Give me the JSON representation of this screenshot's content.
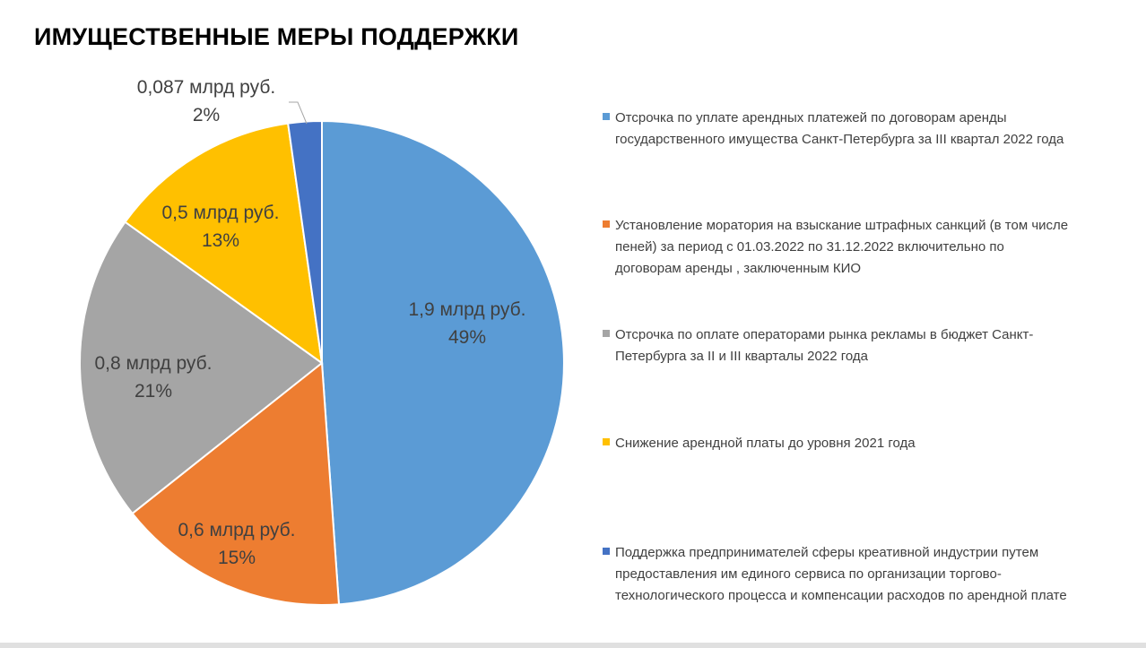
{
  "header": {
    "title": "ИМУЩЕСТВЕННЫЕ МЕРЫ ПОДДЕРЖКИ"
  },
  "chart_data": {
    "type": "pie",
    "start_angle_deg": 0,
    "direction": "clockwise",
    "legend_placement": "right",
    "slices": [
      {
        "label": "Отсрочка по уплате арендных платежей по договорам аренды\nгосударственного имущества Санкт-Петербурга за III квартал 2022 года",
        "value": 1.9,
        "value_text": "1,9 млрд руб.",
        "percent": 49,
        "percent_text": "49%",
        "color": "#5b9bd5"
      },
      {
        "label": "Установление моратория на взыскание штрафных санкций (в том числе\nпеней) за период с 01.03.2022 по 31.12.2022 включительно по\nдоговорам аренды , заключенным КИО",
        "value": 0.6,
        "value_text": "0,6 млрд руб.",
        "percent": 15,
        "percent_text": "15%",
        "color": "#ed7d31"
      },
      {
        "label": "Отсрочка по оплате операторами рынка рекламы в бюджет Санкт-\nПетербурга за II и III кварталы 2022 года",
        "value": 0.8,
        "value_text": "0,8 млрд руб.",
        "percent": 21,
        "percent_text": "21%",
        "color": "#a5a5a5"
      },
      {
        "label": "Снижение  арендной платы до уровня 2021 года",
        "value": 0.5,
        "value_text": "0,5 млрд руб.",
        "percent": 13,
        "percent_text": "13%",
        "color": "#ffc000"
      },
      {
        "label": "Поддержка предпринимателей сферы креативной индустрии путем\nпредоставления им единого сервиса по организации торгово-\nтехнологического процесса и компенсации расходов по арендной плате",
        "value": 0.087,
        "value_text": "0,087 млрд руб.",
        "percent": 2,
        "percent_text": "2%",
        "color": "#4472c4"
      }
    ]
  }
}
